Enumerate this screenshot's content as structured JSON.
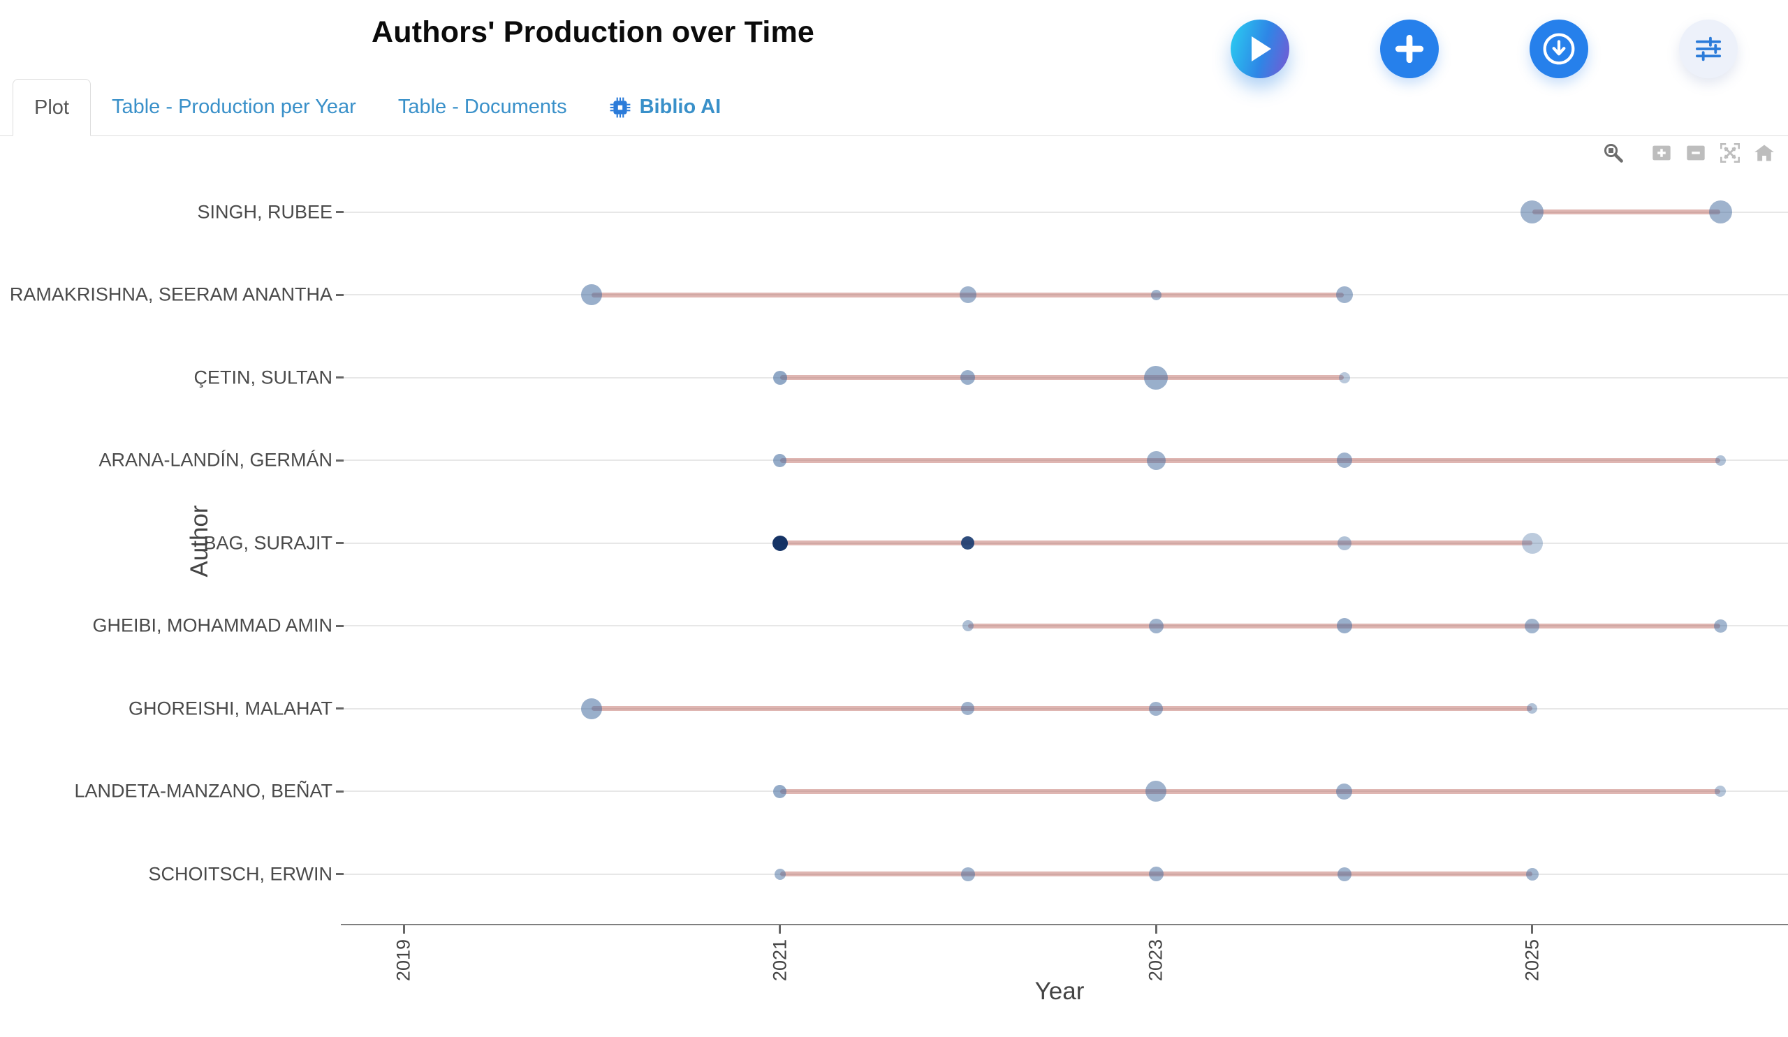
{
  "header": {
    "title": "Authors' Production over Time",
    "actions": [
      {
        "id": "run",
        "icon": "play-icon"
      },
      {
        "id": "add",
        "icon": "plus-icon"
      },
      {
        "id": "download",
        "icon": "download-circle-icon"
      },
      {
        "id": "settings",
        "icon": "sliders-icon"
      }
    ]
  },
  "tabs": [
    {
      "label": "Plot",
      "active": true
    },
    {
      "label": "Table - Production per Year",
      "active": false
    },
    {
      "label": "Table - Documents",
      "active": false
    },
    {
      "label": "Biblio AI",
      "active": false,
      "bold": true,
      "icon": "chip-icon"
    }
  ],
  "modebar": [
    "zoom-icon",
    "zoom-in-icon",
    "zoom-out-icon",
    "autoscale-icon",
    "home-icon"
  ],
  "colors": {
    "accent_blue": "#2680eb",
    "tab_link_blue": "#3990c9",
    "line_pink_rgba": "rgba(178,80,72,0.42)",
    "dot_base_rgb": [
      70,
      110,
      160
    ],
    "dark_dot_hex": "#16376e",
    "axis_gray": "#7f7f7f",
    "grid_gray": "#e7e7e7"
  },
  "chart_data": {
    "type": "scatter",
    "title": "Authors' Production over Time",
    "xlabel": "Year",
    "ylabel": "Author",
    "x_ticks": [
      2019,
      2021,
      2023,
      2025
    ],
    "x_range": [
      2018.6,
      2026.4
    ],
    "grid": "horizontal-per-author",
    "marker_note": "bubble diameter px and alpha as rendered; span = first-to-last publication year line",
    "series": [
      {
        "author": "SINGH, RUBEE",
        "span": [
          2025,
          2026
        ],
        "points": [
          {
            "year": 2025,
            "d": 33,
            "alpha": 0.52
          },
          {
            "year": 2026,
            "d": 33,
            "alpha": 0.52
          }
        ]
      },
      {
        "author": "RAMAKRISHNA, SEERAM ANANTHA",
        "span": [
          2020,
          2024
        ],
        "points": [
          {
            "year": 2020,
            "d": 30,
            "alpha": 0.55
          },
          {
            "year": 2022,
            "d": 24,
            "alpha": 0.52
          },
          {
            "year": 2023,
            "d": 15,
            "alpha": 0.5
          },
          {
            "year": 2024,
            "d": 24,
            "alpha": 0.52
          }
        ]
      },
      {
        "author": "ÇETIN, SULTAN",
        "span": [
          2021,
          2024
        ],
        "points": [
          {
            "year": 2021,
            "d": 20,
            "alpha": 0.6
          },
          {
            "year": 2022,
            "d": 21,
            "alpha": 0.55
          },
          {
            "year": 2023,
            "d": 34,
            "alpha": 0.55
          },
          {
            "year": 2024,
            "d": 16,
            "alpha": 0.38
          }
        ]
      },
      {
        "author": "ARANA-LANDÍN, GERMÁN",
        "span": [
          2021,
          2026
        ],
        "points": [
          {
            "year": 2021,
            "d": 19,
            "alpha": 0.58
          },
          {
            "year": 2023,
            "d": 27,
            "alpha": 0.52
          },
          {
            "year": 2024,
            "d": 22,
            "alpha": 0.52
          },
          {
            "year": 2026,
            "d": 15,
            "alpha": 0.42
          }
        ]
      },
      {
        "author": "BAG, SURAJIT",
        "span": [
          2021,
          2025
        ],
        "points": [
          {
            "year": 2021,
            "d": 22,
            "alpha": 0.97,
            "base": [
              13,
              44,
              96
            ]
          },
          {
            "year": 2022,
            "d": 19,
            "alpha": 0.9,
            "base": [
              23,
              56,
              110
            ]
          },
          {
            "year": 2024,
            "d": 20,
            "alpha": 0.42
          },
          {
            "year": 2025,
            "d": 30,
            "alpha": 0.36
          }
        ]
      },
      {
        "author": "GHEIBI, MOHAMMAD AMIN",
        "span": [
          2022,
          2026
        ],
        "points": [
          {
            "year": 2022,
            "d": 16,
            "alpha": 0.45
          },
          {
            "year": 2023,
            "d": 21,
            "alpha": 0.52
          },
          {
            "year": 2024,
            "d": 22,
            "alpha": 0.55
          },
          {
            "year": 2025,
            "d": 21,
            "alpha": 0.5
          },
          {
            "year": 2026,
            "d": 19,
            "alpha": 0.5
          }
        ]
      },
      {
        "author": "GHOREISHI, MALAHAT",
        "span": [
          2020,
          2025
        ],
        "points": [
          {
            "year": 2020,
            "d": 30,
            "alpha": 0.55
          },
          {
            "year": 2022,
            "d": 19,
            "alpha": 0.52
          },
          {
            "year": 2023,
            "d": 20,
            "alpha": 0.52
          },
          {
            "year": 2025,
            "d": 15,
            "alpha": 0.42
          }
        ]
      },
      {
        "author": "LANDETA-MANZANO, BEÑAT",
        "span": [
          2021,
          2026
        ],
        "points": [
          {
            "year": 2021,
            "d": 19,
            "alpha": 0.58
          },
          {
            "year": 2023,
            "d": 30,
            "alpha": 0.52
          },
          {
            "year": 2024,
            "d": 23,
            "alpha": 0.52
          },
          {
            "year": 2026,
            "d": 16,
            "alpha": 0.4
          }
        ]
      },
      {
        "author": "SCHOITSCH, ERWIN",
        "span": [
          2021,
          2025
        ],
        "points": [
          {
            "year": 2021,
            "d": 16,
            "alpha": 0.5
          },
          {
            "year": 2022,
            "d": 20,
            "alpha": 0.52
          },
          {
            "year": 2023,
            "d": 21,
            "alpha": 0.52
          },
          {
            "year": 2024,
            "d": 20,
            "alpha": 0.52
          },
          {
            "year": 2025,
            "d": 18,
            "alpha": 0.5
          }
        ]
      }
    ]
  }
}
